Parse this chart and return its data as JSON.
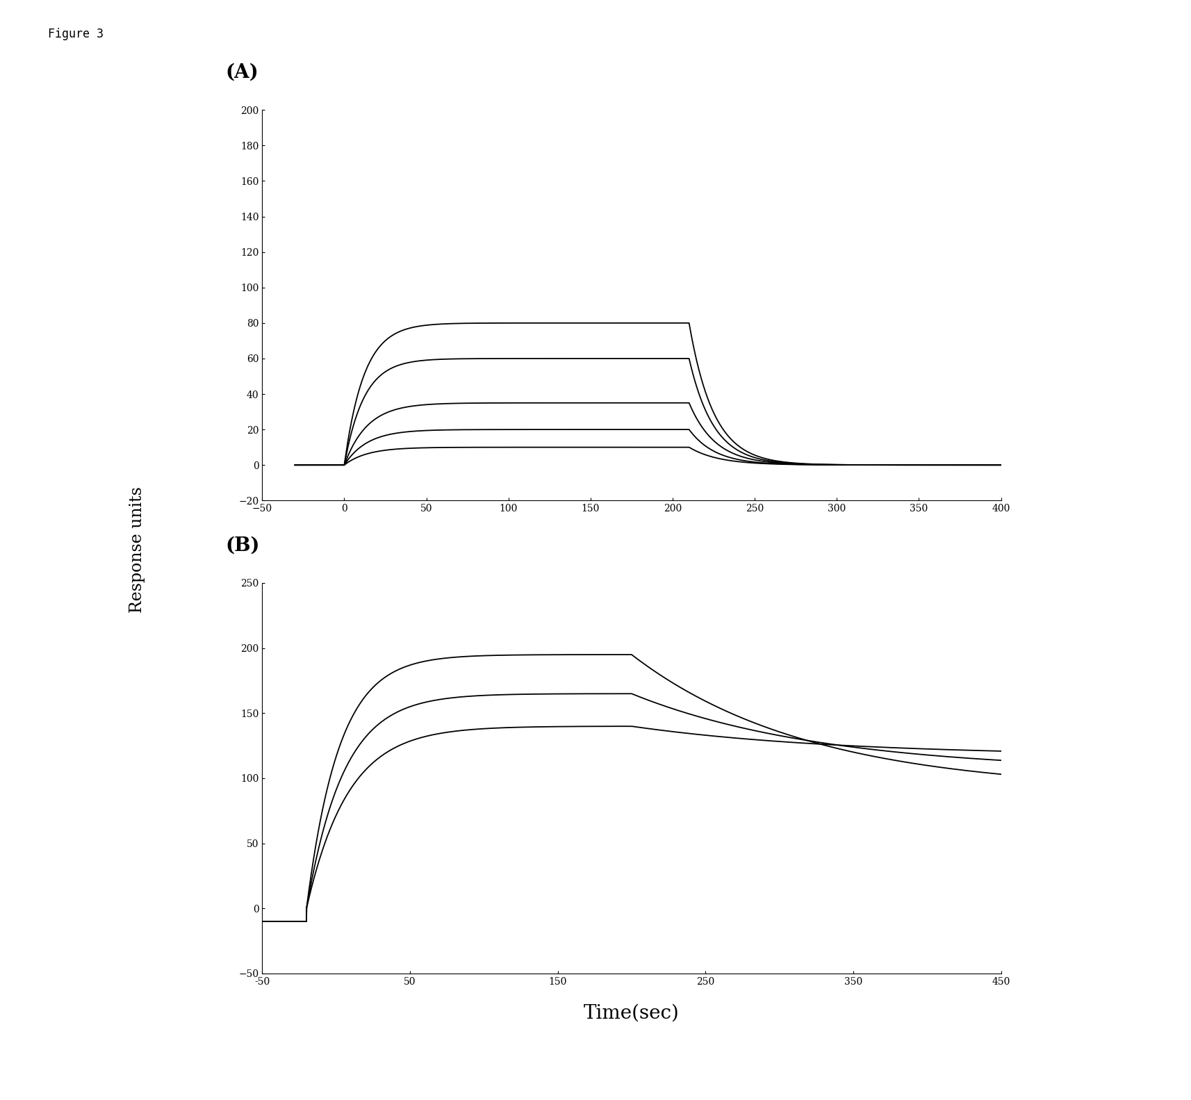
{
  "figure_label": "Figure 3",
  "panel_A_label": "(A)",
  "panel_B_label": "(B)",
  "ylabel": "Response units",
  "xlabel": "Time(sec)",
  "panel_A": {
    "xlim": [
      -30,
      400
    ],
    "ylim": [
      -20,
      200
    ],
    "xticks": [
      -50,
      0,
      50,
      100,
      150,
      200,
      250,
      300,
      350,
      400
    ],
    "yticks": [
      -20,
      0,
      20,
      40,
      60,
      80,
      100,
      120,
      140,
      160,
      180,
      200
    ],
    "curves": [
      {
        "plateau": 80,
        "t_on": 0,
        "t_off": 210,
        "tau_on": 12,
        "tau_off": 15
      },
      {
        "plateau": 60,
        "t_on": 0,
        "t_off": 210,
        "tau_on": 12,
        "tau_off": 15
      },
      {
        "plateau": 35,
        "t_on": 0,
        "t_off": 210,
        "tau_on": 14,
        "tau_off": 16
      },
      {
        "plateau": 20,
        "t_on": 0,
        "t_off": 210,
        "tau_on": 14,
        "tau_off": 16
      },
      {
        "plateau": 10,
        "t_on": 0,
        "t_off": 210,
        "tau_on": 14,
        "tau_off": 18
      }
    ]
  },
  "panel_B": {
    "xlim": [
      -50,
      450
    ],
    "ylim": [
      -50,
      250
    ],
    "xticks": [
      -50,
      50,
      150,
      250,
      350,
      450
    ],
    "xtick_labels": [
      "-50",
      "50",
      "150",
      "250",
      "350",
      "450"
    ],
    "yticks": [
      -50,
      0,
      50,
      100,
      150,
      200,
      250
    ],
    "curves": [
      {
        "plateau": 195,
        "t_on": -20,
        "t_off": 200,
        "tau_on": 22,
        "tau_off": 120,
        "dissoc_end": 90
      },
      {
        "plateau": 165,
        "t_on": -20,
        "t_off": 200,
        "tau_on": 25,
        "tau_off": 130,
        "dissoc_end": 105
      },
      {
        "plateau": 140,
        "t_on": -20,
        "t_off": 200,
        "tau_on": 28,
        "tau_off": 140,
        "dissoc_end": 117
      }
    ],
    "baseline_before": -10
  },
  "line_color": "#000000",
  "line_width": 1.3,
  "background_color": "#ffffff",
  "font_family": "serif",
  "fig_label_fontsize": 12,
  "label_fontsize": 17,
  "tick_fontsize": 10,
  "panel_label_fontsize": 20
}
